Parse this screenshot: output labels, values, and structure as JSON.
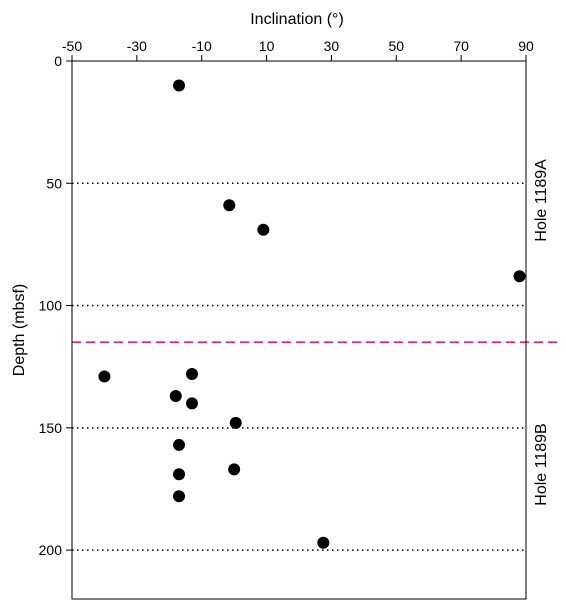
{
  "chart_data": {
    "type": "scatter",
    "xlabel": "Inclination (°)",
    "ylabel": "Depth (mbsf)",
    "xlim": [
      -50,
      90
    ],
    "ylim": [
      0,
      220
    ],
    "y_inverted": true,
    "x_axis_position": "top",
    "x_ticks": [
      -50,
      -30,
      -10,
      10,
      30,
      50,
      70,
      90
    ],
    "x_tick_labels": [
      "-50",
      "-30",
      "-10",
      "10",
      "30",
      "50",
      "70",
      "90"
    ],
    "y_ticks": [
      0,
      50,
      100,
      150,
      200
    ],
    "y_tick_labels": [
      "0",
      "50",
      "100",
      "150",
      "200"
    ],
    "gridlines": {
      "y": [
        50,
        100,
        150,
        200
      ],
      "style": "dotted",
      "color": "#000000"
    },
    "boundary": {
      "y": 115,
      "style": "dashed",
      "color": "#e8245c"
    },
    "region_labels": [
      {
        "text": "Hole 1189A",
        "y_center": 57
      },
      {
        "text": "Hole 1189B",
        "y_center": 165
      }
    ],
    "marker_color": "#000000",
    "points": [
      {
        "x": -17,
        "y": 10
      },
      {
        "x": -1.5,
        "y": 59
      },
      {
        "x": 9,
        "y": 69
      },
      {
        "x": 88,
        "y": 88
      },
      {
        "x": -40,
        "y": 129
      },
      {
        "x": -13,
        "y": 128
      },
      {
        "x": -18,
        "y": 137
      },
      {
        "x": -13,
        "y": 140
      },
      {
        "x": 0.5,
        "y": 148
      },
      {
        "x": -17,
        "y": 157
      },
      {
        "x": -17,
        "y": 169
      },
      {
        "x": 0,
        "y": 167
      },
      {
        "x": -17,
        "y": 178
      },
      {
        "x": 27.5,
        "y": 197
      }
    ]
  }
}
